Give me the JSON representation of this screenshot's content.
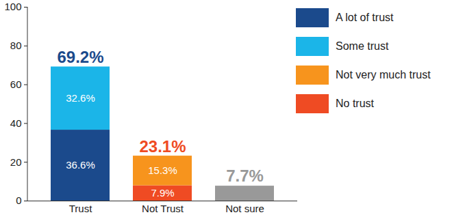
{
  "chart_data": {
    "type": "bar",
    "stacked": true,
    "data_labels": true,
    "categories": [
      "Trust",
      "Not Trust",
      "Not sure"
    ],
    "series": [
      {
        "name": "A lot of trust",
        "color": "#1b4a8c",
        "values": [
          36.6,
          null,
          null
        ],
        "value_labels": [
          "36.6%",
          null,
          null
        ]
      },
      {
        "name": "Some trust",
        "color": "#1bb5e8",
        "values": [
          32.6,
          null,
          null
        ],
        "value_labels": [
          "32.6%",
          null,
          null
        ]
      },
      {
        "name": "Not very much trust",
        "color": "#f7941d",
        "values": [
          null,
          15.3,
          null
        ],
        "value_labels": [
          null,
          "15.3%",
          null
        ]
      },
      {
        "name": "No trust",
        "color": "#ef4b23",
        "values": [
          null,
          7.9,
          null
        ],
        "value_labels": [
          null,
          "7.9%",
          null
        ]
      },
      {
        "color": "#999999",
        "values": [
          null,
          null,
          7.7
        ],
        "value_labels": [
          null,
          null,
          null
        ]
      }
    ],
    "totals": [
      69.2,
      23.1,
      7.7
    ],
    "total_labels": [
      "69.2%",
      "23.1%",
      "7.7%"
    ],
    "ylim": [
      0,
      100
    ],
    "yticks": [
      0,
      20,
      40,
      60,
      80,
      100
    ],
    "legend": "right"
  }
}
